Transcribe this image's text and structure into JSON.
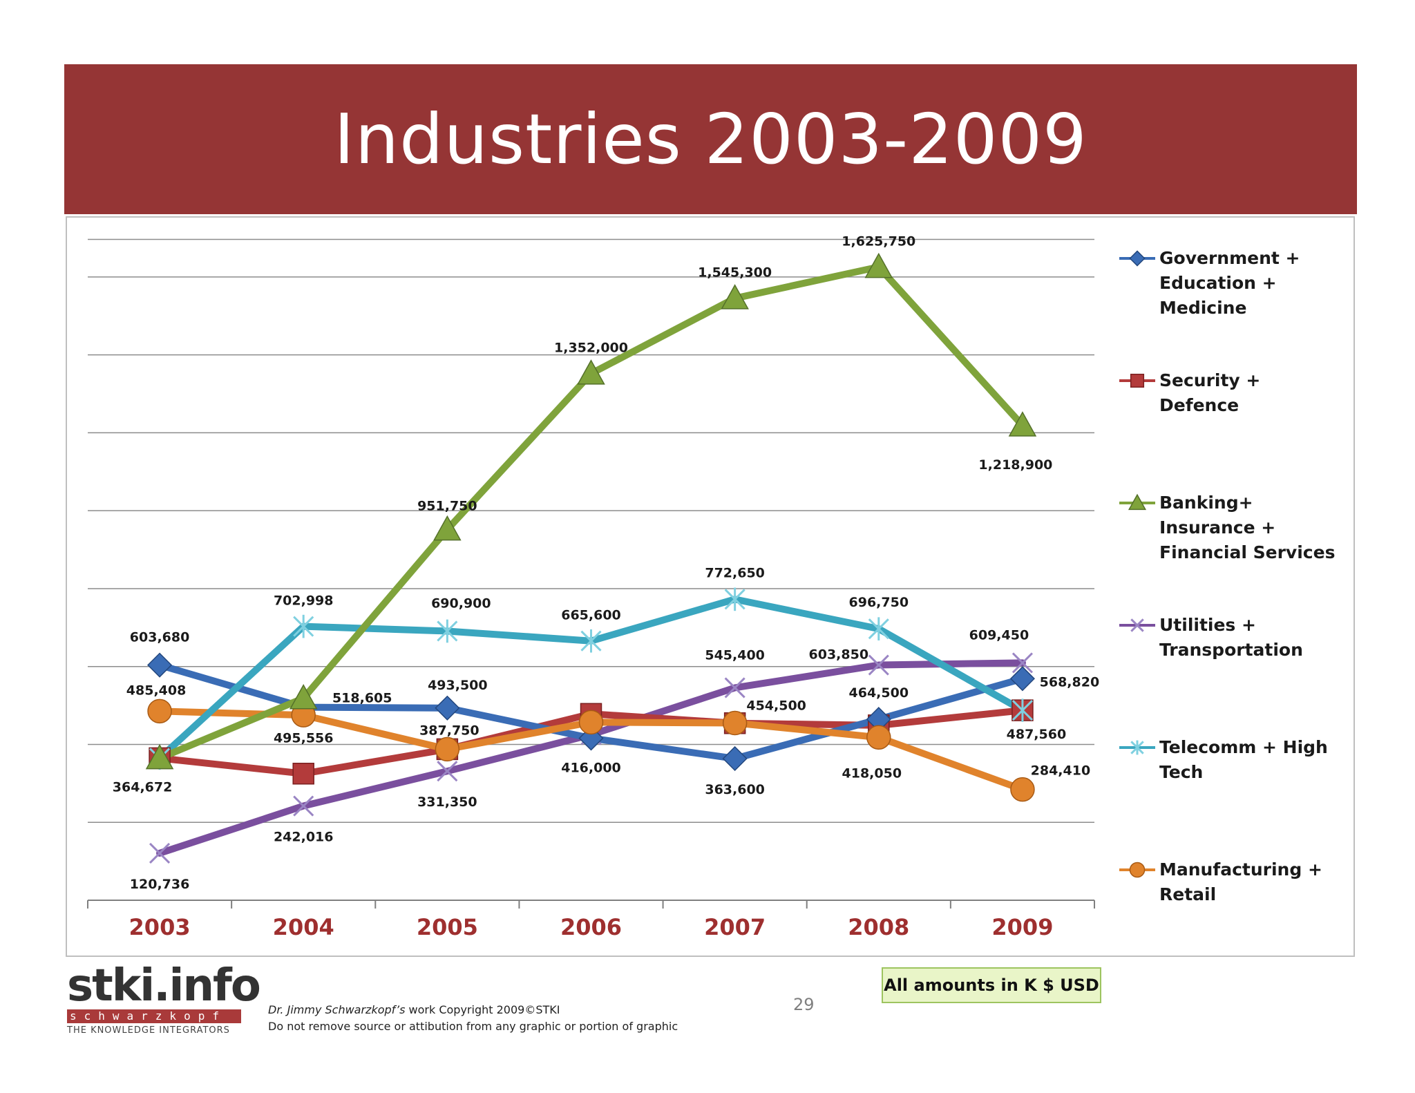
{
  "slide": {
    "title": "Industries 2003-2009",
    "page_number": "29",
    "units_note": "All amounts in K $ USD",
    "copyright_author": "Dr. Jimmy Schwarzkopf’s",
    "copyright_rest": " work Copyright 2009©STKI",
    "copyright_line2": "Do not remove source or attibution from any graphic or portion of graphic",
    "logo_main": "stki.info",
    "logo_sub": "schwarzkopf",
    "logo_tagline": "THE KNOWLEDGE INTEGRATORS",
    "colors": {
      "title_band": "#953535",
      "units_box_bg": "#e9f5c8",
      "units_box_border": "#9dc45f"
    }
  },
  "chart_data": {
    "type": "line",
    "x": [
      "2003",
      "2004",
      "2005",
      "2006",
      "2007",
      "2008",
      "2009"
    ],
    "ylim": [
      0,
      1700000
    ],
    "grid": true,
    "legend_position": "right",
    "series": [
      {
        "name": "Government + Education + Medicine",
        "marker": "diamond",
        "color": "#3a6cb5",
        "values": [
          603680,
          495556,
          493500,
          416000,
          363600,
          464500,
          568820
        ],
        "labels": [
          "603,680",
          "495,556",
          "493,500",
          "416,000",
          "363,600",
          "464,500",
          "568,820"
        ]
      },
      {
        "name": "Security + Defence",
        "marker": "square",
        "color": "#b33b3b",
        "values": [
          364672,
          325000,
          387750,
          478400,
          454500,
          449000,
          487560
        ],
        "labels": [
          "364,672",
          "",
          "387,750",
          "",
          "454,500",
          "",
          "487,560"
        ]
      },
      {
        "name": "Banking+ Insurance + Financial Services",
        "marker": "triangle",
        "color": "#7fa33b",
        "values": [
          364672,
          518605,
          951750,
          1352000,
          1545300,
          1625750,
          1218900
        ],
        "labels": [
          "",
          "518,605",
          "951,750",
          "1,352,000",
          "1,545,300",
          "1,625,750",
          "1,218,900"
        ]
      },
      {
        "name": "Utilities + Transportation",
        "marker": "x",
        "color": "#7a4f9e",
        "values": [
          120736,
          242016,
          331350,
          425000,
          545400,
          603850,
          609450
        ],
        "labels": [
          "120,736",
          "242,016",
          "331,350",
          "",
          "545,400",
          "603,850",
          "609,450"
        ]
      },
      {
        "name": "Telecomm + High Tech",
        "marker": "star",
        "color": "#3aa6bf",
        "values": [
          364672,
          702998,
          690900,
          665600,
          772650,
          696750,
          487560
        ],
        "labels": [
          "",
          "702,998",
          "690,900",
          "665,600",
          "772,650",
          "696,750",
          ""
        ]
      },
      {
        "name": "Manufacturing + Retail",
        "marker": "circle",
        "color": "#e0832c",
        "values": [
          485408,
          475000,
          387750,
          457000,
          455000,
          418050,
          284410
        ],
        "labels": [
          "485,408",
          "",
          "",
          "",
          "",
          "418,050",
          "284,410"
        ]
      }
    ]
  }
}
